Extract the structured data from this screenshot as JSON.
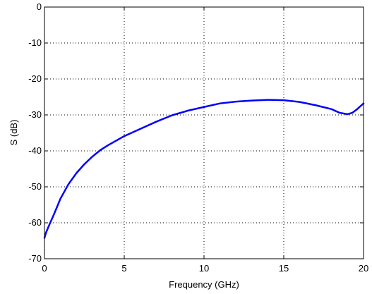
{
  "chart_data": {
    "type": "line",
    "title": "",
    "xlabel": "Frequency (GHz)",
    "ylabel": "S (dB)",
    "xlim": [
      0,
      20
    ],
    "ylim": [
      -70,
      0
    ],
    "xticks": [
      0,
      5,
      10,
      15,
      20
    ],
    "yticks": [
      0,
      -10,
      -20,
      -30,
      -40,
      -50,
      -60,
      -70
    ],
    "grid": true,
    "grid_style": "dotted",
    "series": [
      {
        "color": "#0000ff",
        "points": [
          [
            0.0,
            -64.2
          ],
          [
            0.1,
            -62.7
          ],
          [
            0.3,
            -60.6
          ],
          [
            0.5,
            -58.6
          ],
          [
            0.75,
            -56.0
          ],
          [
            1.0,
            -53.3
          ],
          [
            1.5,
            -49.3
          ],
          [
            2.0,
            -46.2
          ],
          [
            2.5,
            -43.7
          ],
          [
            3.0,
            -41.6
          ],
          [
            3.5,
            -39.8
          ],
          [
            4.0,
            -38.4
          ],
          [
            5.0,
            -35.9
          ],
          [
            6.0,
            -33.9
          ],
          [
            7.0,
            -31.9
          ],
          [
            8.0,
            -30.1
          ],
          [
            9.0,
            -28.8
          ],
          [
            10.0,
            -27.8
          ],
          [
            11.0,
            -26.8
          ],
          [
            12.0,
            -26.3
          ],
          [
            13.0,
            -26.0
          ],
          [
            14.0,
            -25.8
          ],
          [
            15.0,
            -25.9
          ],
          [
            16.0,
            -26.4
          ],
          [
            17.0,
            -27.3
          ],
          [
            18.0,
            -28.4
          ],
          [
            18.5,
            -29.4
          ],
          [
            19.0,
            -29.8
          ],
          [
            19.3,
            -29.4
          ],
          [
            19.6,
            -28.4
          ],
          [
            20.0,
            -26.8
          ]
        ]
      }
    ]
  }
}
